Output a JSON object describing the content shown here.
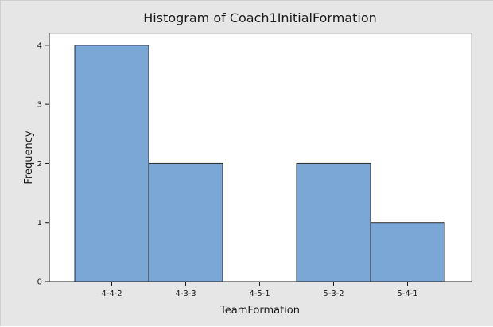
{
  "chart_data": {
    "type": "bar",
    "title": "Histogram of Coach1InitialFormation",
    "xlabel": "TeamFormation",
    "ylabel": "Frequency",
    "categories": [
      "4-4-2",
      "4-3-3",
      "4-5-1",
      "5-3-2",
      "5-4-1"
    ],
    "values": [
      4,
      2,
      0,
      2,
      1
    ],
    "ylim": [
      0,
      4.2
    ],
    "yticks": [
      "0",
      "1",
      "2",
      "3",
      "4"
    ],
    "grid": false,
    "bar_color": "#7ba7d7",
    "bar_edge_color": "#2b2b2b",
    "plot_background": "#ffffff",
    "figure_background": "#e6e6e6"
  }
}
